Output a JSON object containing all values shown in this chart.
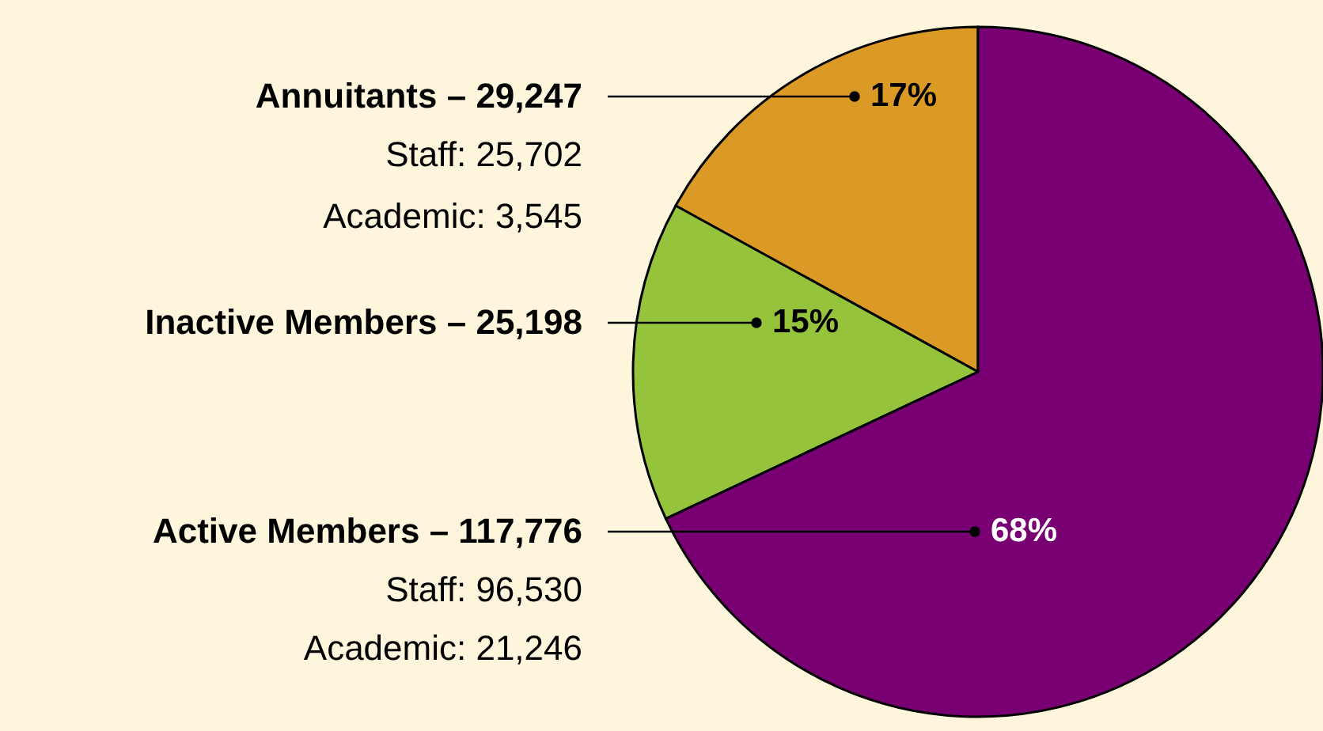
{
  "chart_data": {
    "type": "pie",
    "categories": [
      "Annuitants – 29,247",
      "Inactive Members – 25,198",
      "Active Members – 117,776"
    ],
    "values": [
      17,
      15,
      68
    ],
    "colors": [
      "#db9a26",
      "#95c43c",
      "#780073"
    ],
    "value_labels": [
      "17%",
      "15%",
      "68%"
    ],
    "annotations": [
      "Staff: 25,702",
      "Academic: 3,545",
      "Staff: 96,530",
      "Academic: 21,246"
    ]
  }
}
